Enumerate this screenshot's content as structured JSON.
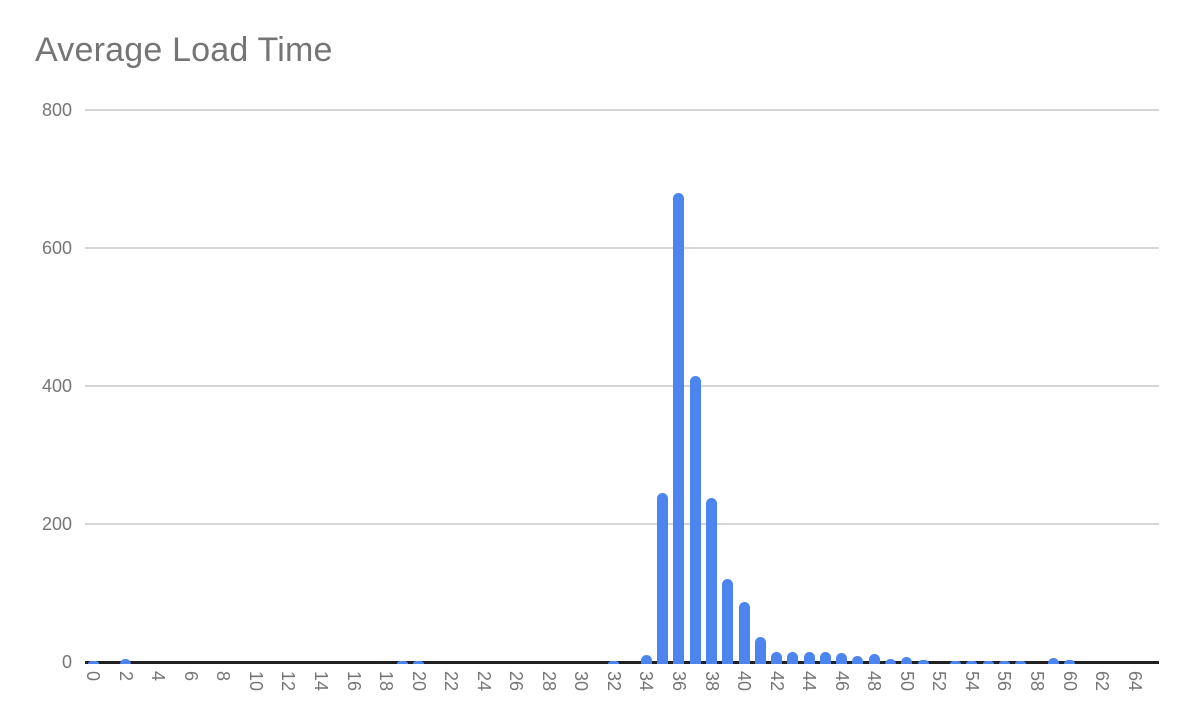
{
  "window": {
    "background": "#ffffff"
  },
  "chart_data": {
    "type": "bar",
    "title": "Average Load Time",
    "xlabel": "",
    "ylabel": "",
    "x_min": 0,
    "x_max": 65,
    "ylim": [
      0,
      800
    ],
    "y_ticks": [
      0,
      200,
      400,
      600,
      800
    ],
    "x_ticks": [
      0,
      2,
      4,
      6,
      8,
      10,
      12,
      14,
      16,
      18,
      20,
      22,
      24,
      26,
      28,
      30,
      32,
      34,
      36,
      38,
      40,
      42,
      44,
      46,
      48,
      50,
      52,
      54,
      56,
      58,
      60,
      62,
      64
    ],
    "grid": true,
    "legend": "none",
    "bars": [
      {
        "x": 0,
        "value": 2
      },
      {
        "x": 2,
        "value": 5
      },
      {
        "x": 19,
        "value": 2
      },
      {
        "x": 20,
        "value": 2
      },
      {
        "x": 32,
        "value": 2
      },
      {
        "x": 34,
        "value": 10
      },
      {
        "x": 35,
        "value": 245
      },
      {
        "x": 36,
        "value": 680
      },
      {
        "x": 37,
        "value": 415
      },
      {
        "x": 38,
        "value": 238
      },
      {
        "x": 39,
        "value": 120
      },
      {
        "x": 40,
        "value": 87
      },
      {
        "x": 41,
        "value": 36
      },
      {
        "x": 42,
        "value": 15
      },
      {
        "x": 43,
        "value": 14
      },
      {
        "x": 44,
        "value": 14
      },
      {
        "x": 45,
        "value": 14
      },
      {
        "x": 46,
        "value": 13
      },
      {
        "x": 47,
        "value": 9
      },
      {
        "x": 48,
        "value": 11
      },
      {
        "x": 49,
        "value": 4
      },
      {
        "x": 50,
        "value": 7
      },
      {
        "x": 51,
        "value": 3
      },
      {
        "x": 53,
        "value": 2
      },
      {
        "x": 54,
        "value": 2
      },
      {
        "x": 55,
        "value": 2
      },
      {
        "x": 56,
        "value": 2
      },
      {
        "x": 57,
        "value": 2
      },
      {
        "x": 59,
        "value": 6
      },
      {
        "x": 60,
        "value": 3
      }
    ],
    "colors": {
      "bar": "#4d85ee",
      "gridline": "#d6d6d6",
      "axis_line": "#212121",
      "axis_text": "#757575",
      "title_text": "#757575"
    }
  }
}
